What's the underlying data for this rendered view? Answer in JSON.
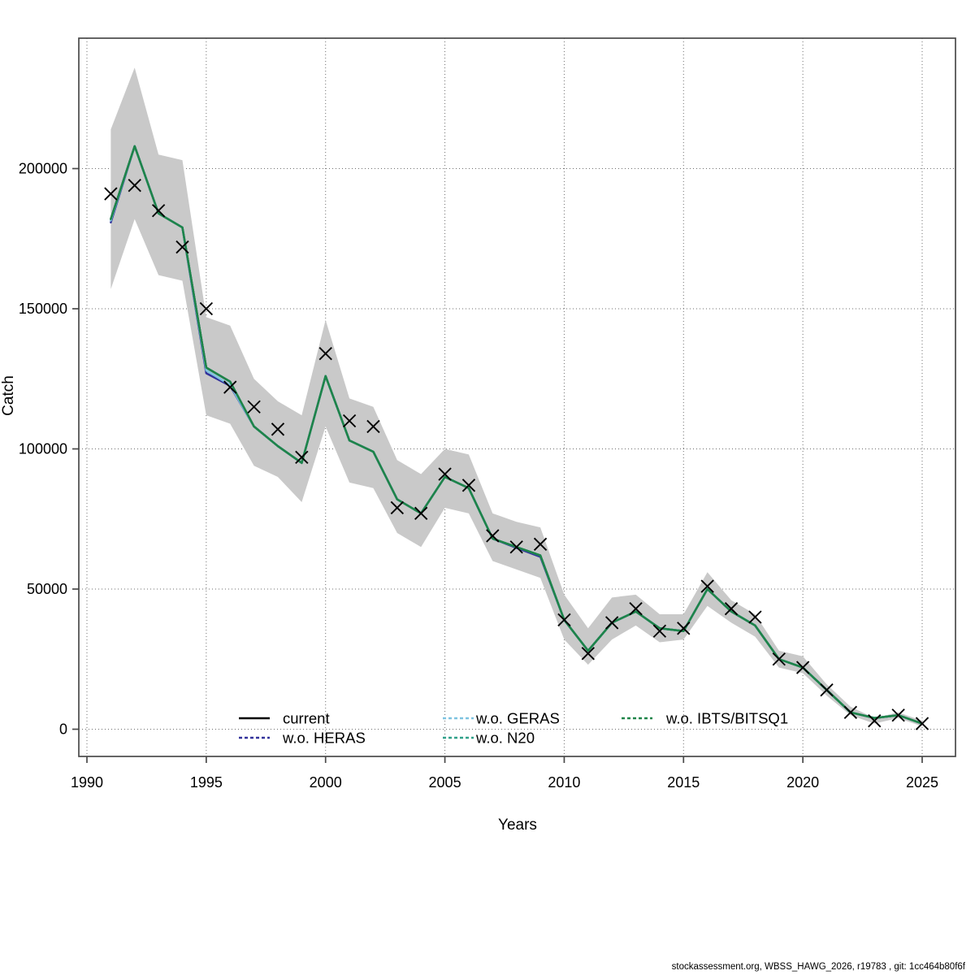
{
  "footer": {
    "text": "stockassessment.org, WBSS_HAWG_2026, r19783 , git: 1cc464b80f6f"
  },
  "chart_data": {
    "type": "line",
    "title": "",
    "xlabel": "Years",
    "ylabel": "Catch",
    "grid": "dotted",
    "legend_position": "bottom-inside",
    "xlim": [
      1989.6,
      2026.5
    ],
    "ylim": [
      -9500,
      246500
    ],
    "xticks": [
      1990,
      1995,
      2000,
      2005,
      2010,
      2015,
      2020,
      2025
    ],
    "xtick_labels": [
      "1990",
      "1995",
      "2000",
      "2005",
      "2010",
      "2015",
      "2020",
      "2025"
    ],
    "yticks": [
      0,
      50000,
      100000,
      150000,
      200000
    ],
    "ytick_labels": [
      "0",
      "50000",
      "100000",
      "150000",
      "200000"
    ],
    "x": [
      1991,
      1992,
      1993,
      1994,
      1995,
      1996,
      1997,
      1998,
      1999,
      2000,
      2001,
      2002,
      2003,
      2004,
      2005,
      2006,
      2007,
      2008,
      2009,
      2010,
      2011,
      2012,
      2013,
      2014,
      2015,
      2016,
      2017,
      2018,
      2019,
      2020,
      2021,
      2022,
      2023,
      2024,
      2025
    ],
    "band": {
      "name": "confidence-interval",
      "color": "#c9c9c9",
      "lower": [
        157000,
        182000,
        162000,
        160000,
        112000,
        109000,
        94000,
        90000,
        81000,
        108000,
        88000,
        86000,
        70000,
        65000,
        79000,
        77000,
        60000,
        57000,
        54000,
        32000,
        23000,
        32000,
        37000,
        31000,
        32000,
        44000,
        38000,
        33000,
        22000,
        20000,
        12000,
        5000,
        2000,
        4000,
        1000
      ],
      "upper": [
        214000,
        236000,
        205000,
        203000,
        147000,
        144000,
        125000,
        117000,
        112000,
        146000,
        118000,
        115000,
        96000,
        91000,
        100000,
        98000,
        77000,
        74000,
        72000,
        48000,
        36000,
        47000,
        48000,
        41000,
        41000,
        56000,
        46000,
        41000,
        28000,
        26000,
        16000,
        8000,
        4000,
        6000,
        3000
      ]
    },
    "observations": {
      "name": "observed catch",
      "marker": "x",
      "color": "#000000",
      "values": [
        191000,
        194000,
        185000,
        172000,
        150000,
        122000,
        115000,
        107000,
        97000,
        134000,
        110000,
        108000,
        79000,
        77000,
        91000,
        87000,
        69000,
        65000,
        66000,
        39000,
        27000,
        38000,
        43000,
        35000,
        36000,
        51000,
        43000,
        40000,
        25000,
        22000,
        14000,
        6000,
        3000,
        5000,
        2000
      ]
    },
    "series": [
      {
        "name": "current",
        "color": "#000000",
        "dash": "solid",
        "values": [
          182000,
          208000,
          184000,
          179000,
          129000,
          124000,
          108000,
          101000,
          95000,
          126000,
          103000,
          99000,
          82000,
          77000,
          90000,
          86000,
          68000,
          65000,
          62000,
          39000,
          28000,
          38000,
          42000,
          36000,
          35000,
          50000,
          42000,
          37000,
          25000,
          22000,
          14000,
          6000,
          4000,
          5000,
          2000
        ]
      },
      {
        "name": "w.o. HERAS",
        "color": "#32329b",
        "dash": "dashed",
        "values": [
          180800,
          208000,
          184000,
          179000,
          127000,
          122500,
          108000,
          101000,
          95000,
          126000,
          103000,
          99000,
          82000,
          77000,
          90000,
          86000,
          68000,
          64700,
          61500,
          39000,
          28000,
          38000,
          42000,
          36000,
          35000,
          50000,
          42000,
          37000,
          25000,
          22000,
          14000,
          6000,
          4000,
          5000,
          2000
        ]
      },
      {
        "name": "w.o. GERAS",
        "color": "#7ec3e0",
        "dash": "dashed",
        "values": [
          181500,
          208000,
          184000,
          179000,
          128000,
          122800,
          108000,
          101000,
          95000,
          126000,
          103000,
          99000,
          82000,
          77000,
          90000,
          86000,
          68000,
          65000,
          62000,
          39000,
          28000,
          38000,
          42000,
          36000,
          35000,
          50000,
          42000,
          37000,
          25000,
          22000,
          14000,
          6000,
          4000,
          5000,
          2000
        ]
      },
      {
        "name": "w.o. N20",
        "color": "#2fa089",
        "dash": "dashed",
        "values": [
          182000,
          208000,
          184000,
          179000,
          129000,
          124000,
          108000,
          101000,
          95000,
          126000,
          103000,
          99000,
          82000,
          77000,
          90000,
          86000,
          68000,
          65000,
          62000,
          39000,
          28000,
          38000,
          42000,
          36000,
          35000,
          50000,
          42000,
          37000,
          25000,
          22000,
          14000,
          6000,
          4000,
          5000,
          2000
        ]
      },
      {
        "name": "w.o. IBTS/BITSQ1",
        "color": "#1e8449",
        "dash": "dashed",
        "values": [
          182000,
          208000,
          184000,
          179000,
          129000,
          124000,
          108000,
          101000,
          95000,
          126000,
          103000,
          99000,
          82000,
          77000,
          90000,
          86000,
          68000,
          65000,
          62000,
          39000,
          28000,
          38000,
          42000,
          36000,
          35000,
          50000,
          42000,
          37000,
          25000,
          22000,
          14000,
          6000,
          4000,
          5000,
          2000
        ]
      }
    ],
    "legend_entries": [
      "current",
      "w.o. HERAS",
      "w.o. GERAS",
      "w.o. N20",
      "w.o. IBTS/BITSQ1"
    ]
  }
}
